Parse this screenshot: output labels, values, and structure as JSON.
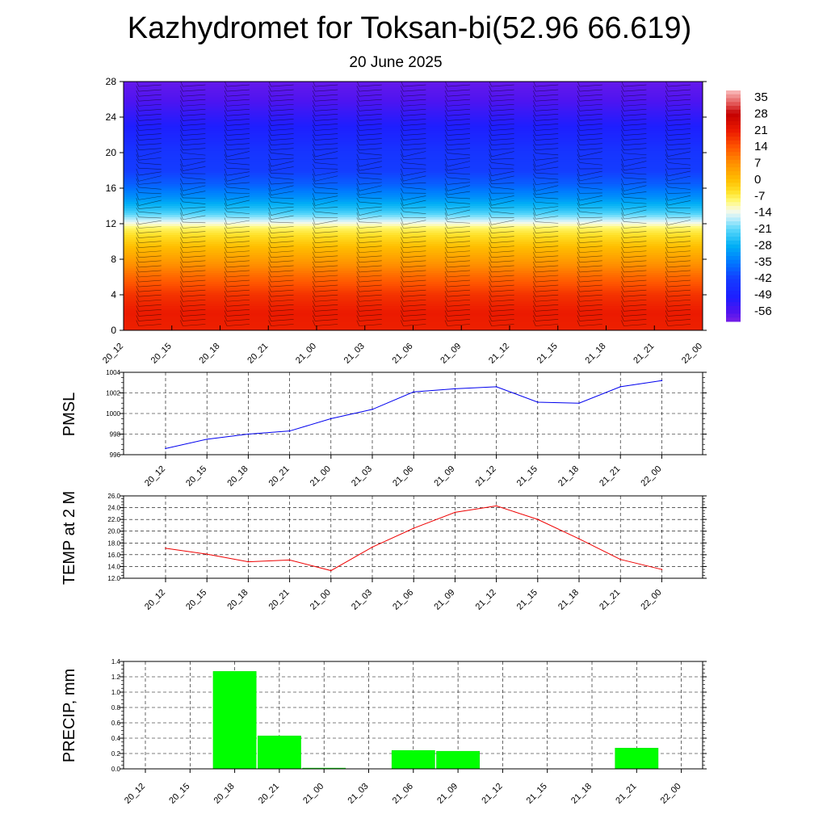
{
  "header": {
    "title": "Kazhydromet for Toksan-bi(52.96 66.619)",
    "subtitle": "20 June 2025"
  },
  "chart_data": [
    {
      "type": "heatmap",
      "title": "",
      "xlabel": "",
      "ylabel": "",
      "x_tick_labels": [
        "20_12",
        "20_15",
        "20_18",
        "20_21",
        "21_00",
        "21_03",
        "21_06",
        "21_09",
        "21_12",
        "21_15",
        "21_18",
        "21_21",
        "22_00"
      ],
      "y_ticks": [
        0,
        4,
        8,
        12,
        16,
        20,
        24,
        28
      ],
      "ylim": [
        0,
        28
      ],
      "colorbar_labels": [
        "35",
        "28",
        "21",
        "14",
        "7",
        "0",
        "-7",
        "-14",
        "-21",
        "-28",
        "-35",
        "-42",
        "-49",
        "-56"
      ],
      "colorbar_range": [
        -60,
        38
      ],
      "temperature_profile": [
        [
          0,
          20
        ],
        [
          2,
          21
        ],
        [
          4,
          18
        ],
        [
          6,
          12
        ],
        [
          8,
          5
        ],
        [
          10,
          -2
        ],
        [
          11.5,
          -8
        ],
        [
          12.4,
          -16
        ],
        [
          13.5,
          -24
        ],
        [
          15,
          -32
        ],
        [
          16.5,
          -38
        ],
        [
          18,
          -42
        ],
        [
          20,
          -44
        ],
        [
          22,
          -48
        ],
        [
          24,
          -52
        ],
        [
          26,
          -56
        ],
        [
          28,
          -58
        ]
      ],
      "overlay": "wind barbs",
      "grid": false
    },
    {
      "type": "line",
      "ylabel": "PMSL",
      "categories": [
        "20_12",
        "20_15",
        "20_18",
        "20_21",
        "21_00",
        "21_03",
        "21_06",
        "21_09",
        "21_12",
        "21_15",
        "21_18",
        "21_21",
        "22_00"
      ],
      "values": [
        996.6,
        997.5,
        998.0,
        998.3,
        999.5,
        1000.4,
        1002.1,
        1002.4,
        1002.6,
        1001.1,
        1001.0,
        1002.6,
        1003.2
      ],
      "ylim": [
        996,
        1004
      ],
      "y_ticks": [
        "996",
        "998",
        "1000",
        "1002",
        "1004"
      ],
      "color": "#0000ee",
      "grid": true
    },
    {
      "type": "line",
      "ylabel": "TEMP at 2 M",
      "categories": [
        "20_12",
        "20_15",
        "20_18",
        "20_21",
        "21_00",
        "21_03",
        "21_06",
        "21_09",
        "21_12",
        "21_15",
        "21_18",
        "21_21",
        "22_00"
      ],
      "values": [
        17.1,
        16.1,
        14.8,
        15.1,
        13.3,
        17.3,
        20.5,
        23.2,
        24.3,
        22.0,
        18.7,
        15.2,
        13.5
      ],
      "ylim": [
        12,
        26
      ],
      "y_ticks": [
        "12.0",
        "14.0",
        "16.0",
        "18.0",
        "20.0",
        "22.0",
        "24.0",
        "26.0"
      ],
      "color": "#ee0000",
      "grid": true
    },
    {
      "type": "bar",
      "ylabel": "PRECIP, mm",
      "categories": [
        "20_12",
        "20_15",
        "20_18",
        "20_21",
        "21_00",
        "21_03",
        "21_06",
        "21_09",
        "21_12",
        "21_15",
        "21_18",
        "21_21",
        "22_00"
      ],
      "values": [
        0,
        0,
        1.27,
        0.43,
        0.01,
        0,
        0.24,
        0.23,
        0,
        0,
        0,
        0.27,
        0
      ],
      "ylim": [
        0,
        1.4
      ],
      "y_ticks": [
        "0.0",
        "0.2",
        "0.4",
        "0.6",
        "0.8",
        "1.0",
        "1.2",
        "1.4"
      ],
      "color": "#00ff00",
      "grid": true
    }
  ]
}
